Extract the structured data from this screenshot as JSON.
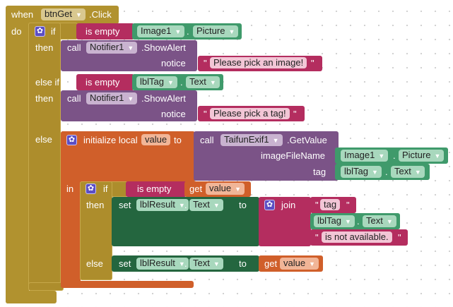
{
  "event": {
    "when": "when",
    "component": "btnGet",
    "event": ".Click",
    "do": "do"
  },
  "if1": {
    "if": "if",
    "then1": "then",
    "elseif": "else if",
    "then2": "then",
    "else": "else"
  },
  "cond1": {
    "op": "is empty",
    "component": "Image1",
    "dot": ".",
    "property": "Picture"
  },
  "alert1": {
    "call": "call",
    "component": "Notifier1",
    "method": ".ShowAlert",
    "arg": "notice",
    "text": "Please pick an image!"
  },
  "cond2": {
    "op": "is empty",
    "component": "lblTag",
    "dot": ".",
    "property": "Text"
  },
  "alert2": {
    "call": "call",
    "component": "Notifier1",
    "method": ".ShowAlert",
    "arg": "notice",
    "text": "Please pick a tag!"
  },
  "local": {
    "label": "initialize local",
    "var": "value",
    "to": "to",
    "in": "in"
  },
  "getvalue": {
    "call": "call",
    "component": "TaifunExif1",
    "method": ".GetValue",
    "arg1": "imageFileName",
    "arg1_component": "Image1",
    "arg1_property": "Picture",
    "arg2": "tag",
    "arg2_component": "lblTag",
    "arg2_property": "Text"
  },
  "if2": {
    "if": "if",
    "then": "then",
    "else": "else",
    "op": "is empty",
    "get": "get",
    "var": "value"
  },
  "set1": {
    "set": "set",
    "component": "lblResult",
    "dot": ".",
    "property": "Text",
    "to": "to",
    "join": "join",
    "s1": "tag",
    "mid_component": "lblTag",
    "mid_property": "Text",
    "s2": "is not available."
  },
  "set2": {
    "set": "set",
    "component": "lblResult",
    "dot": ".",
    "property": "Text",
    "to": "to",
    "get": "get",
    "var": "value"
  },
  "colors": {
    "control": "#b1922f",
    "component_call": "#7b5387",
    "component_get": "#3f9a6b",
    "component_set": "#24663f",
    "text": "#b42d5f",
    "variable": "#d05f2a"
  }
}
